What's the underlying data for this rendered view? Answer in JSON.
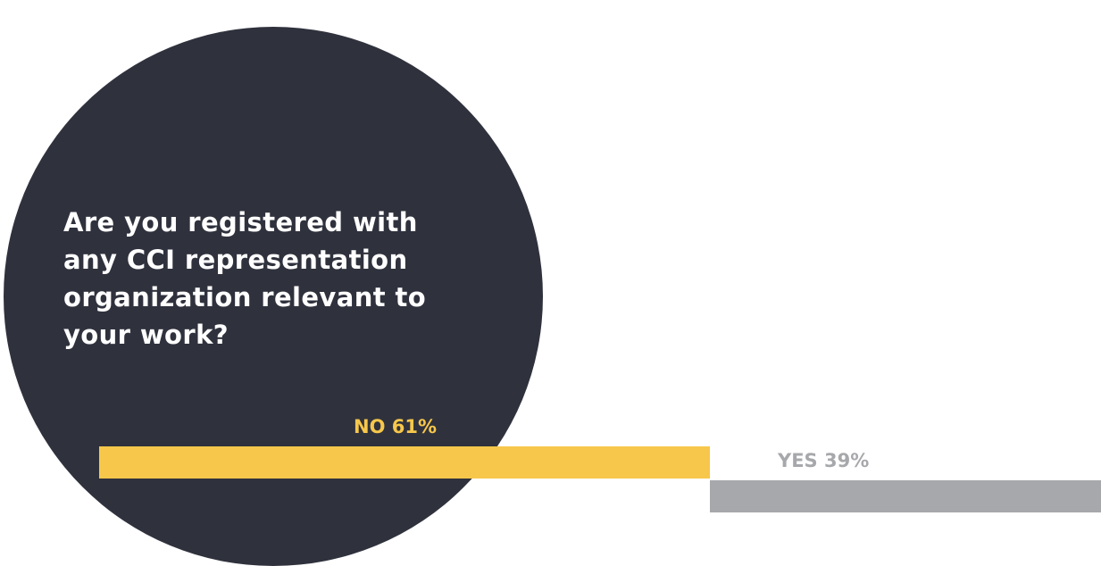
{
  "question": {
    "lines": [
      "Are you registered with",
      "any CCI representation",
      "organization relevant to",
      "your work?"
    ]
  },
  "colors": {
    "circle": "#2f323d",
    "text_on_dark": "#ffffff",
    "no": "#f7c74b",
    "yes": "#a7a8ab"
  },
  "chart_data": {
    "type": "bar",
    "orientation": "horizontal",
    "unit": "%",
    "categories": [
      "NO",
      "YES"
    ],
    "values": [
      61,
      39
    ],
    "labels": [
      "NO 61%",
      "YES 39%"
    ],
    "colors": [
      "#f7c74b",
      "#a7a8ab"
    ],
    "grid": false,
    "legend": "none"
  }
}
